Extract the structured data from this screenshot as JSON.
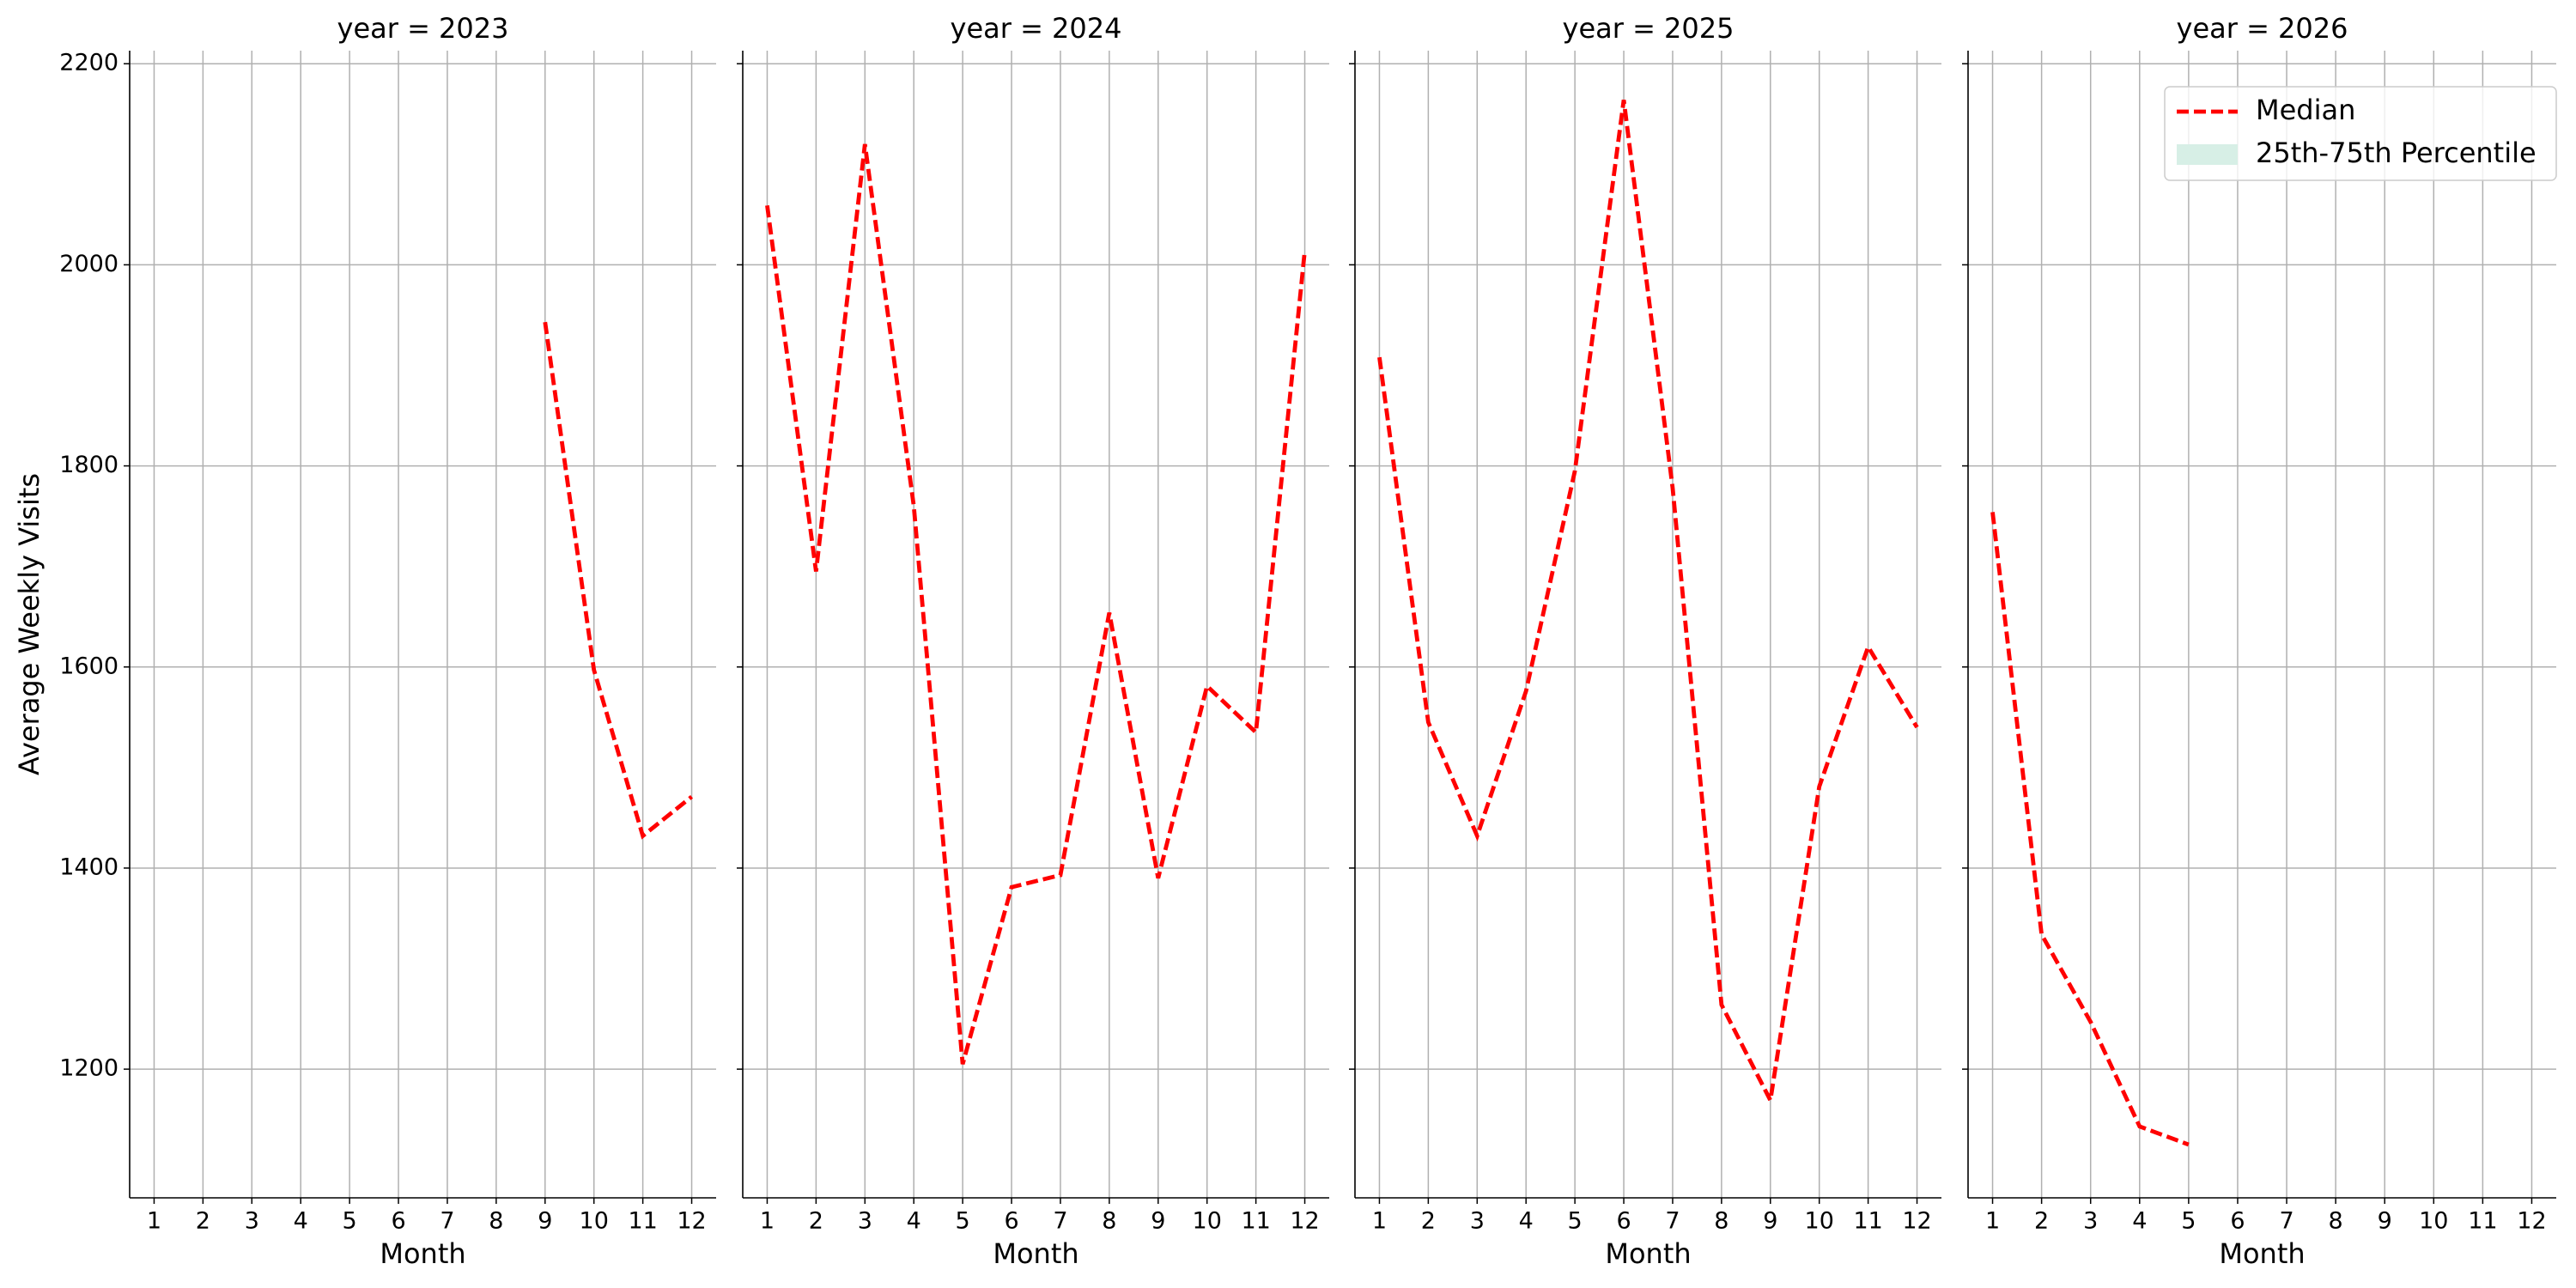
{
  "chart_data": [
    {
      "type": "line",
      "title": "year = 2023",
      "xlabel": "Month",
      "ylabel": "Average Weekly Visits",
      "x": [
        1,
        2,
        3,
        4,
        5,
        6,
        7,
        8,
        9,
        10,
        11,
        12
      ],
      "series": [
        {
          "name": "Median",
          "color": "red",
          "values": [
            null,
            null,
            null,
            null,
            null,
            null,
            null,
            null,
            1943,
            1597,
            1432,
            1471
          ]
        }
      ],
      "xlim": [
        0.5,
        12.5
      ],
      "ylim": [
        1072,
        2213
      ],
      "xticks": [
        1,
        2,
        3,
        4,
        5,
        6,
        7,
        8,
        9,
        10,
        11,
        12
      ],
      "yticks": [
        1200,
        1400,
        1600,
        1800,
        2000,
        2200
      ],
      "grid": true
    },
    {
      "type": "line",
      "title": "year = 2024",
      "xlabel": "Month",
      "x": [
        1,
        2,
        3,
        4,
        5,
        6,
        7,
        8,
        9,
        10,
        11,
        12
      ],
      "series": [
        {
          "name": "Median",
          "color": "red",
          "values": [
            2059,
            1695,
            2120,
            1760,
            1205,
            1381,
            1393,
            1654,
            1390,
            1581,
            1535,
            2014
          ]
        }
      ],
      "xlim": [
        0.5,
        12.5
      ],
      "ylim": [
        1072,
        2213
      ],
      "xticks": [
        1,
        2,
        3,
        4,
        5,
        6,
        7,
        8,
        9,
        10,
        11,
        12
      ],
      "yticks": [
        1200,
        1400,
        1600,
        1800,
        2000,
        2200
      ],
      "grid": true
    },
    {
      "type": "line",
      "title": "year = 2025",
      "xlabel": "Month",
      "x": [
        1,
        2,
        3,
        4,
        5,
        6,
        7,
        8,
        9,
        10,
        11,
        12
      ],
      "series": [
        {
          "name": "Median",
          "color": "red",
          "values": [
            1908,
            1545,
            1432,
            1576,
            1795,
            2164,
            1778,
            1264,
            1169,
            1481,
            1620,
            1540
          ]
        }
      ],
      "xlim": [
        0.5,
        12.5
      ],
      "ylim": [
        1072,
        2213
      ],
      "xticks": [
        1,
        2,
        3,
        4,
        5,
        6,
        7,
        8,
        9,
        10,
        11,
        12
      ],
      "yticks": [
        1200,
        1400,
        1600,
        1800,
        2000,
        2200
      ],
      "grid": true
    },
    {
      "type": "line",
      "title": "year = 2026",
      "xlabel": "Month",
      "x": [
        1,
        2,
        3,
        4,
        5,
        6,
        7,
        8,
        9,
        10,
        11,
        12
      ],
      "series": [
        {
          "name": "Median",
          "color": "red",
          "values": [
            1754,
            1334,
            1247,
            1143,
            1125,
            null,
            null,
            null,
            null,
            null,
            null,
            null
          ]
        }
      ],
      "xlim": [
        0.5,
        12.5
      ],
      "ylim": [
        1072,
        2213
      ],
      "xticks": [
        1,
        2,
        3,
        4,
        5,
        6,
        7,
        8,
        9,
        10,
        11,
        12
      ],
      "yticks": [
        1200,
        1400,
        1600,
        1800,
        2000,
        2200
      ],
      "grid": true,
      "legend": {
        "loc": "upper right",
        "entries": [
          {
            "name": "Median",
            "color": "red",
            "kind": "line"
          },
          {
            "name": "25th-75th Percentile",
            "color": "#d7efe6",
            "kind": "patch"
          }
        ]
      }
    }
  ]
}
